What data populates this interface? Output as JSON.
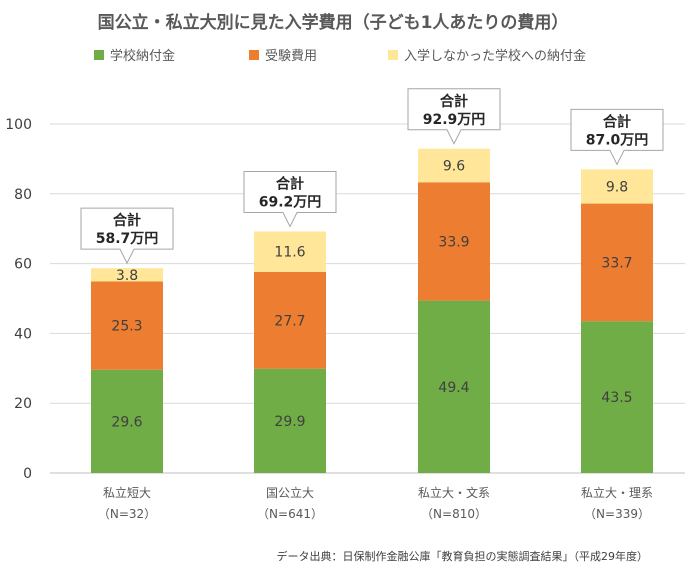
{
  "chart_data": {
    "type": "bar",
    "stacked": true,
    "title": "国公立・私立大別に見た入学費用（子ども1人あたりの費用）",
    "categories": [
      "私立短大",
      "国公立大",
      "私立大・文系",
      "私立大・理系"
    ],
    "category_notes": [
      "（N=32）",
      "（N=641）",
      "（N=810）",
      "（N=339）"
    ],
    "series": [
      {
        "name": "学校納付金",
        "values": [
          29.6,
          29.9,
          49.4,
          43.5
        ],
        "color": "#70ad47"
      },
      {
        "name": "受験費用",
        "values": [
          25.3,
          27.7,
          33.9,
          33.7
        ],
        "color": "#ed7d31"
      },
      {
        "name": "入学しなかった学校への納付金",
        "values": [
          3.8,
          11.6,
          9.6,
          9.8
        ],
        "color": "#ffe699"
      }
    ],
    "totals_label": "合計",
    "totals": [
      "58.7万円",
      "69.2万円",
      "92.9万円",
      "87.0万円"
    ],
    "ylim": [
      0,
      100
    ],
    "yticks": [
      0,
      20,
      40,
      60,
      80,
      100
    ],
    "grid": true,
    "legend": "top",
    "source": "データ出典：日保制作金融公庫「教育負担の実態調査結果」（平成29年度）"
  }
}
